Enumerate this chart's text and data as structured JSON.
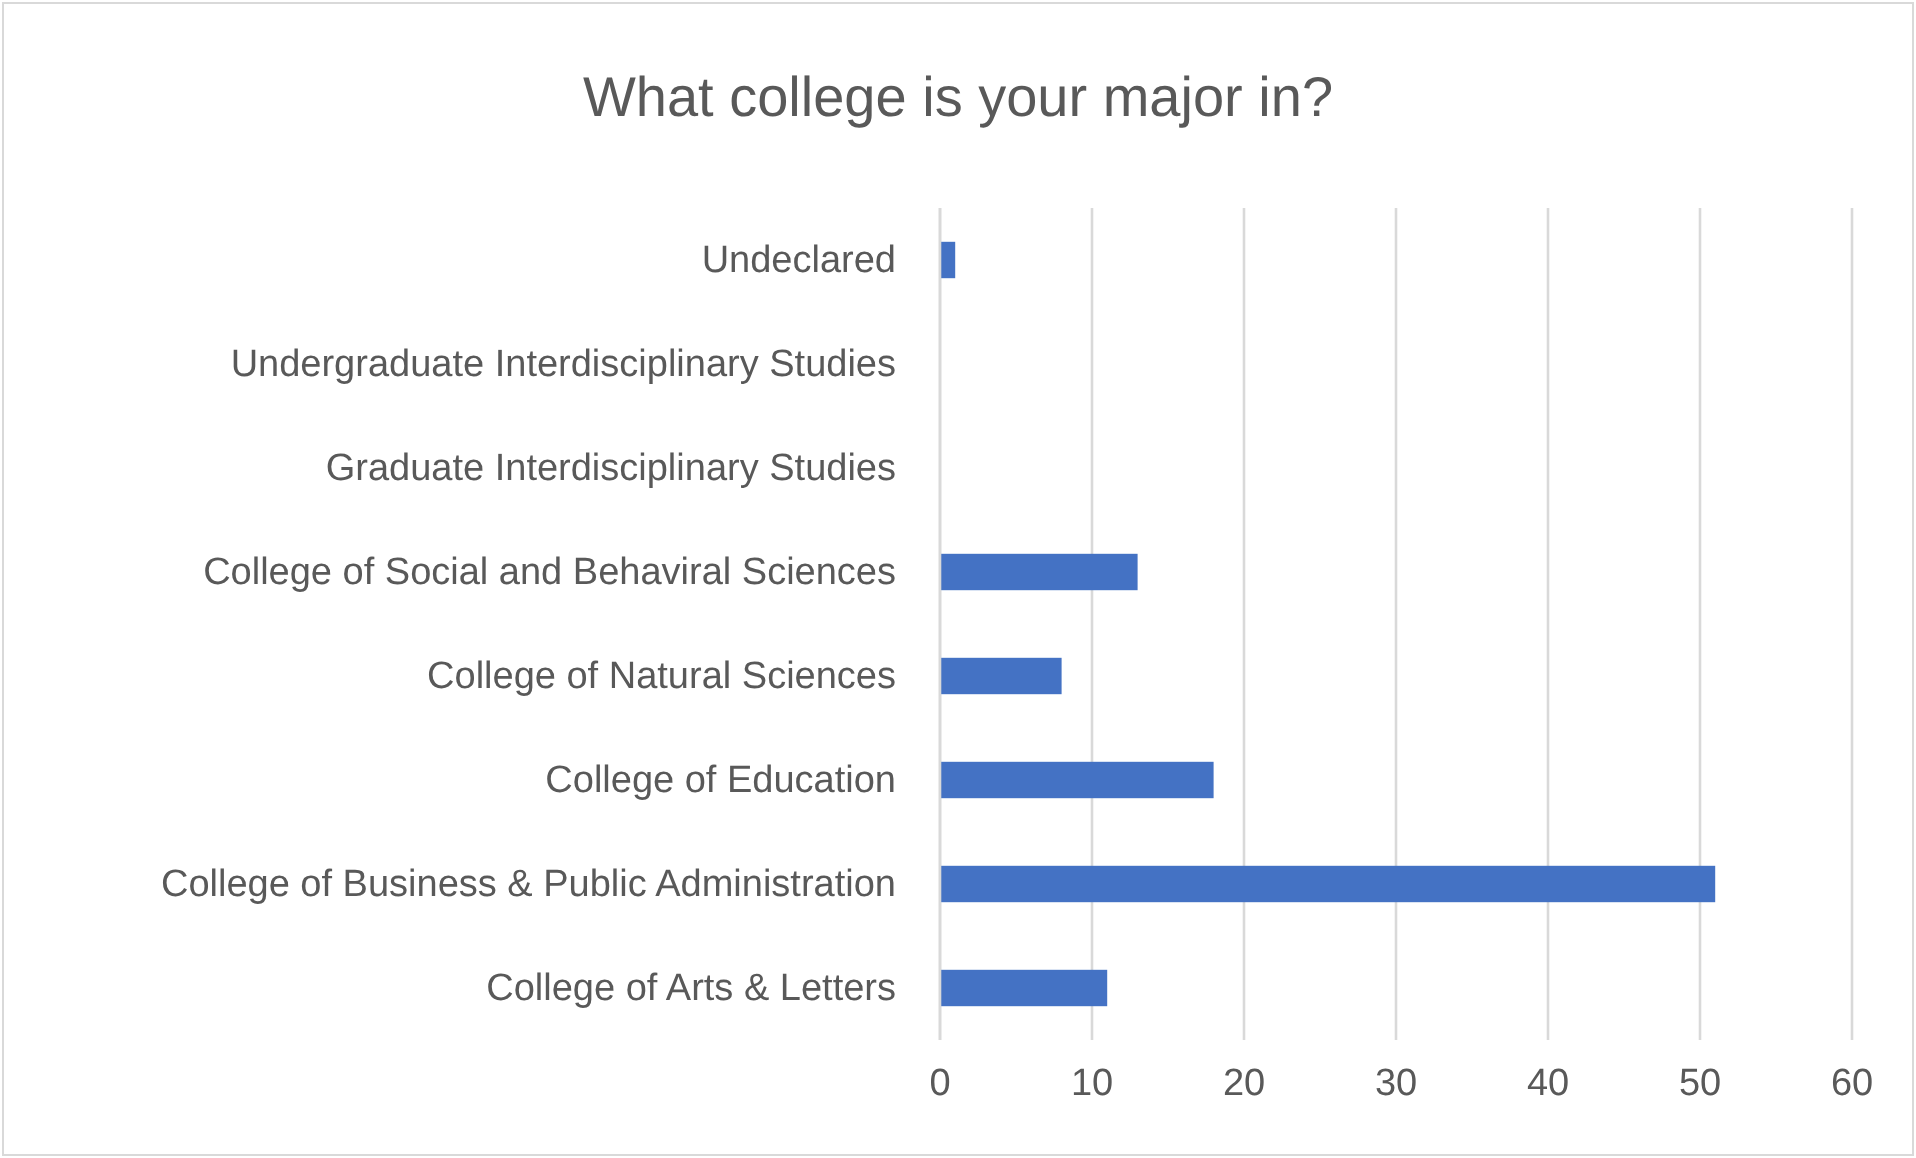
{
  "chart_data": {
    "type": "bar",
    "orientation": "horizontal",
    "title": "What college is your major in?",
    "categories": [
      "Undeclared",
      "Undergraduate Interdisciplinary Studies",
      "Graduate Interdisciplinary Studies",
      "College of Social and Behaviral Sciences",
      "College of Natural Sciences",
      "College of Education",
      "College of Business & Public Administration",
      "College of Arts & Letters"
    ],
    "values": [
      1,
      0,
      0,
      13,
      8,
      18,
      51,
      11
    ],
    "color": "#4472c4",
    "xlim": [
      0,
      60
    ],
    "xticks": [
      0,
      10,
      20,
      30,
      40,
      50,
      60
    ],
    "grid": "x"
  }
}
